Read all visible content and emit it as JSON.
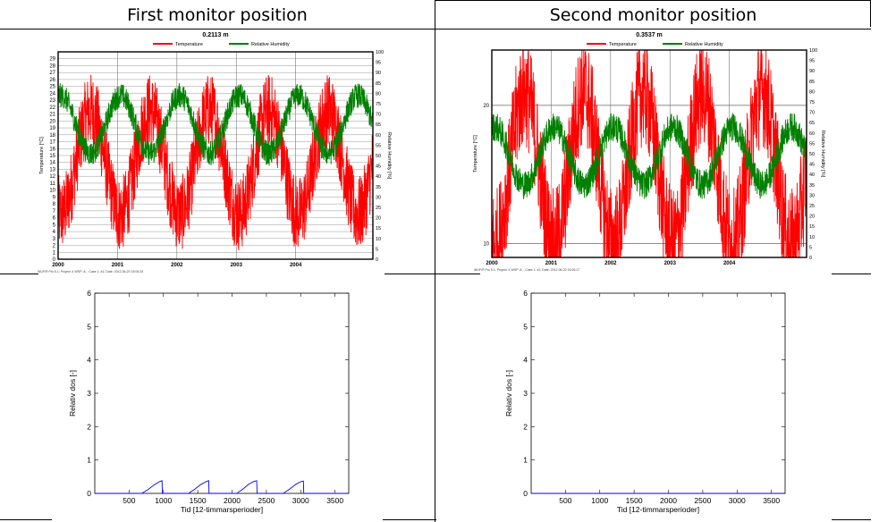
{
  "columns": [
    {
      "title": "First monitor position"
    },
    {
      "title": "Second monitor position"
    }
  ],
  "chart_data": [
    {
      "type": "line",
      "title": "0.2113 m",
      "legend": [
        "Temperature",
        "Relative Humidity"
      ],
      "series": [
        {
          "name": "Temperature",
          "color": "#ff0000",
          "axis": "left",
          "mean": 14,
          "amp": 7.5,
          "noise": 5.5
        },
        {
          "name": "Relative Humidity",
          "color": "#008000",
          "axis": "right",
          "mean": 65,
          "amp": 14,
          "noise": 6
        }
      ],
      "xlim": [
        2000,
        2005.3
      ],
      "ylim_left": [
        0,
        30
      ],
      "ylim_right": [
        0,
        100
      ],
      "xticks": [
        "2000",
        "2001",
        "2002",
        "2003",
        "2004"
      ],
      "yticks_left": [
        "0",
        "1",
        "2",
        "3",
        "4",
        "5",
        "6",
        "7",
        "8",
        "9",
        "10",
        "11",
        "12",
        "13",
        "14",
        "15",
        "16",
        "17",
        "18",
        "19",
        "20",
        "21",
        "22",
        "23",
        "24",
        "25",
        "26",
        "27",
        "28",
        "29"
      ],
      "yticks_right": [
        "0",
        "5",
        "10",
        "15",
        "20",
        "25",
        "30",
        "35",
        "40",
        "45",
        "50",
        "55",
        "60",
        "65",
        "70",
        "75",
        "80",
        "85",
        "90",
        "95",
        "100"
      ],
      "ylabel_left": "Temperature [°C]",
      "ylabel_right": "Relative Humidity [%]",
      "footer": "WUFI® Pro 5.1; Project: 4 WSP; A; ; Case 1: #1; Date: 2012-06-20 15:06:25",
      "grid": true
    },
    {
      "type": "line",
      "title": "0.3537 m",
      "legend": [
        "Temperature",
        "Relative Humidity"
      ],
      "series": [
        {
          "name": "Temperature",
          "color": "#ff0000",
          "axis": "left",
          "mean": 15.5,
          "amp": 5.5,
          "noise": 4
        },
        {
          "name": "Relative Humidity",
          "color": "#008000",
          "axis": "right",
          "mean": 49,
          "amp": 14,
          "noise": 7
        }
      ],
      "xlim": [
        2000,
        2005.3
      ],
      "ylim_left": [
        9,
        24
      ],
      "ylim_right": [
        0,
        100
      ],
      "xticks": [
        "2000",
        "2001",
        "2002",
        "2003",
        "2004"
      ],
      "yticks_left": [
        "10",
        "20"
      ],
      "yticks_right": [
        "0",
        "5",
        "10",
        "15",
        "20",
        "25",
        "30",
        "35",
        "40",
        "45",
        "50",
        "55",
        "60",
        "65",
        "70",
        "75",
        "80",
        "85",
        "90",
        "95",
        "100"
      ],
      "ylabel_left": "Temperature [°C]",
      "ylabel_right": "Relative Humidity [%]",
      "footer": "WUFI® Pro 5.1; Project: 4 WSP; A; ; Case 1: #1; Date: 2012-06-20 15:06:17",
      "grid": true
    },
    {
      "type": "line",
      "title": "",
      "xlabel": "Tid [12-timmarsperioder]",
      "ylabel": "Relativ dos [-]",
      "xlim": [
        0,
        3700
      ],
      "ylim": [
        0,
        6
      ],
      "xticks": [
        "500",
        "1000",
        "1500",
        "2000",
        "2500",
        "3000",
        "3500"
      ],
      "yticks": [
        "0",
        "1",
        "2",
        "3",
        "4",
        "5",
        "6"
      ],
      "series": [
        {
          "color": "#0000ff",
          "points": [
            [
              0,
              0
            ],
            [
              700,
              0
            ],
            [
              700,
              0.02
            ],
            [
              780,
              0.12
            ],
            [
              860,
              0.25
            ],
            [
              940,
              0.35
            ],
            [
              980,
              0.38
            ],
            [
              985,
              0
            ],
            [
              1380,
              0
            ],
            [
              1380,
              0.02
            ],
            [
              1460,
              0.13
            ],
            [
              1540,
              0.26
            ],
            [
              1620,
              0.35
            ],
            [
              1660,
              0.38
            ],
            [
              1665,
              0
            ],
            [
              2080,
              0
            ],
            [
              2080,
              0.02
            ],
            [
              2160,
              0.13
            ],
            [
              2240,
              0.27
            ],
            [
              2320,
              0.36
            ],
            [
              2360,
              0.38
            ],
            [
              2365,
              0
            ],
            [
              2760,
              0
            ],
            [
              2760,
              0.02
            ],
            [
              2840,
              0.13
            ],
            [
              2920,
              0.26
            ],
            [
              3000,
              0.35
            ],
            [
              3040,
              0.37
            ],
            [
              3045,
              0
            ],
            [
              3650,
              0
            ]
          ]
        }
      ]
    },
    {
      "type": "line",
      "title": "",
      "xlabel": "Tid [12-timmarsperioder]",
      "ylabel": "Relativ dos [-]",
      "xlim": [
        0,
        3700
      ],
      "ylim": [
        0,
        6
      ],
      "xticks": [
        "500",
        "1000",
        "1500",
        "2000",
        "2500",
        "3000",
        "3500"
      ],
      "yticks": [
        "0",
        "1",
        "2",
        "3",
        "4",
        "5",
        "6"
      ],
      "series": [
        {
          "color": "#0000ff",
          "points": [
            [
              0,
              0
            ],
            [
              3650,
              0
            ]
          ]
        }
      ]
    }
  ]
}
